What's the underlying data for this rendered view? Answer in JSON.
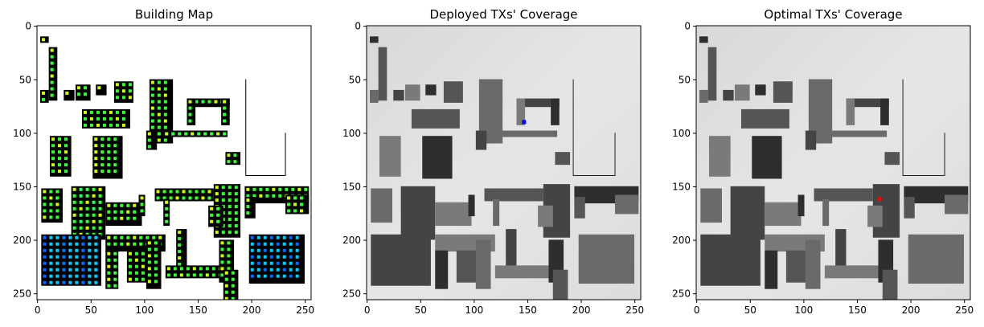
{
  "chart_data": [
    {
      "type": "heatmap",
      "title": "Building Map",
      "xlim": [
        0,
        255
      ],
      "ylim": [
        255,
        0
      ],
      "xticks": [
        0,
        50,
        100,
        150,
        200,
        250
      ],
      "yticks": [
        0,
        50,
        100,
        150,
        200,
        250
      ],
      "background": "#ffffff",
      "building_color": "#000000",
      "marker_colors": [
        "#7cfc00",
        "#33ff33",
        "#ccff00",
        "#00ccff",
        "#0066ff",
        "#1a1aff"
      ]
    },
    {
      "type": "heatmap",
      "title": "Deployed TXs' Coverage",
      "xlim": [
        0,
        255
      ],
      "ylim": [
        255,
        0
      ],
      "xticks": [
        0,
        50,
        100,
        150,
        200,
        250
      ],
      "yticks": [
        0,
        50,
        100,
        150,
        200,
        250
      ],
      "colormap": "gray",
      "tx_marker": {
        "x": 147,
        "y": 90,
        "color": "#0000ff"
      }
    },
    {
      "type": "heatmap",
      "title": "Optimal TXs' Coverage",
      "xlim": [
        0,
        255
      ],
      "ylim": [
        255,
        0
      ],
      "xticks": [
        0,
        50,
        100,
        150,
        200,
        250
      ],
      "yticks": [
        0,
        50,
        100,
        150,
        200,
        250
      ],
      "colormap": "gray",
      "tx_marker": {
        "x": 171,
        "y": 162,
        "color": "#ff0000"
      }
    }
  ]
}
